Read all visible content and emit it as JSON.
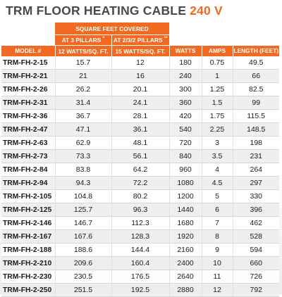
{
  "title": {
    "main": "TRM FLOOR HEATING CABLE",
    "voltage": "240 V"
  },
  "header": {
    "group": "SQUARE FEET COVERED",
    "sub1": "AT 3 PILLARS",
    "sub1_mark": "*",
    "sub2": "AT 2/3/2 PILLARS",
    "sub2_mark": "**",
    "columns": [
      "MODEL #",
      "12 WATTS/SQ. FT.",
      "15 WATTS/SQ. FT.",
      "WATTS",
      "AMPS",
      "LENGTH (FEET)"
    ]
  },
  "colors": {
    "accent": "#f26a21",
    "title_text": "#4a4a4a"
  },
  "rows": [
    [
      "TRM-FH-2-15",
      "15.7",
      "12",
      "180",
      "0.75",
      "49.5"
    ],
    [
      "TRM-FH-2-21",
      "21",
      "16",
      "240",
      "1",
      "66"
    ],
    [
      "TRM-FH-2-26",
      "26.2",
      "20.1",
      "300",
      "1.25",
      "82.5"
    ],
    [
      "TRM-FH-2-31",
      "31.4",
      "24.1",
      "360",
      "1.5",
      "99"
    ],
    [
      "TRM-FH-2-36",
      "36.7",
      "28.1",
      "420",
      "1.75",
      "115.5"
    ],
    [
      "TRM-FH-2-47",
      "47.1",
      "36.1",
      "540",
      "2.25",
      "148.5"
    ],
    [
      "TRM-FH-2-63",
      "62.9",
      "48.1",
      "720",
      "3",
      "198"
    ],
    [
      "TRM-FH-2-73",
      "73.3",
      "56.1",
      "840",
      "3.5",
      "231"
    ],
    [
      "TRM-FH-2-84",
      "83.8",
      "64.2",
      "960",
      "4",
      "264"
    ],
    [
      "TRM-FH-2-94",
      "94.3",
      "72.2",
      "1080",
      "4.5",
      "297"
    ],
    [
      "TRM-FH-2-105",
      "104.8",
      "80.2",
      "1200",
      "5",
      "330"
    ],
    [
      "TRM-FH-2-125",
      "125.7",
      "96.3",
      "1440",
      "6",
      "396"
    ],
    [
      "TRM-FH-2-146",
      "146.7",
      "112.3",
      "1680",
      "7",
      "462"
    ],
    [
      "TRM-FH-2-167",
      "167.6",
      "128.3",
      "1920",
      "8",
      "528"
    ],
    [
      "TRM-FH-2-188",
      "188.6",
      "144.4",
      "2160",
      "9",
      "594"
    ],
    [
      "TRM-FH-2-210",
      "209.6",
      "160.4",
      "2400",
      "10",
      "660"
    ],
    [
      "TRM-FH-2-230",
      "230.5",
      "176.5",
      "2640",
      "11",
      "726"
    ],
    [
      "TRM-FH-2-250",
      "251.5",
      "192.5",
      "2880",
      "12",
      "792"
    ]
  ]
}
